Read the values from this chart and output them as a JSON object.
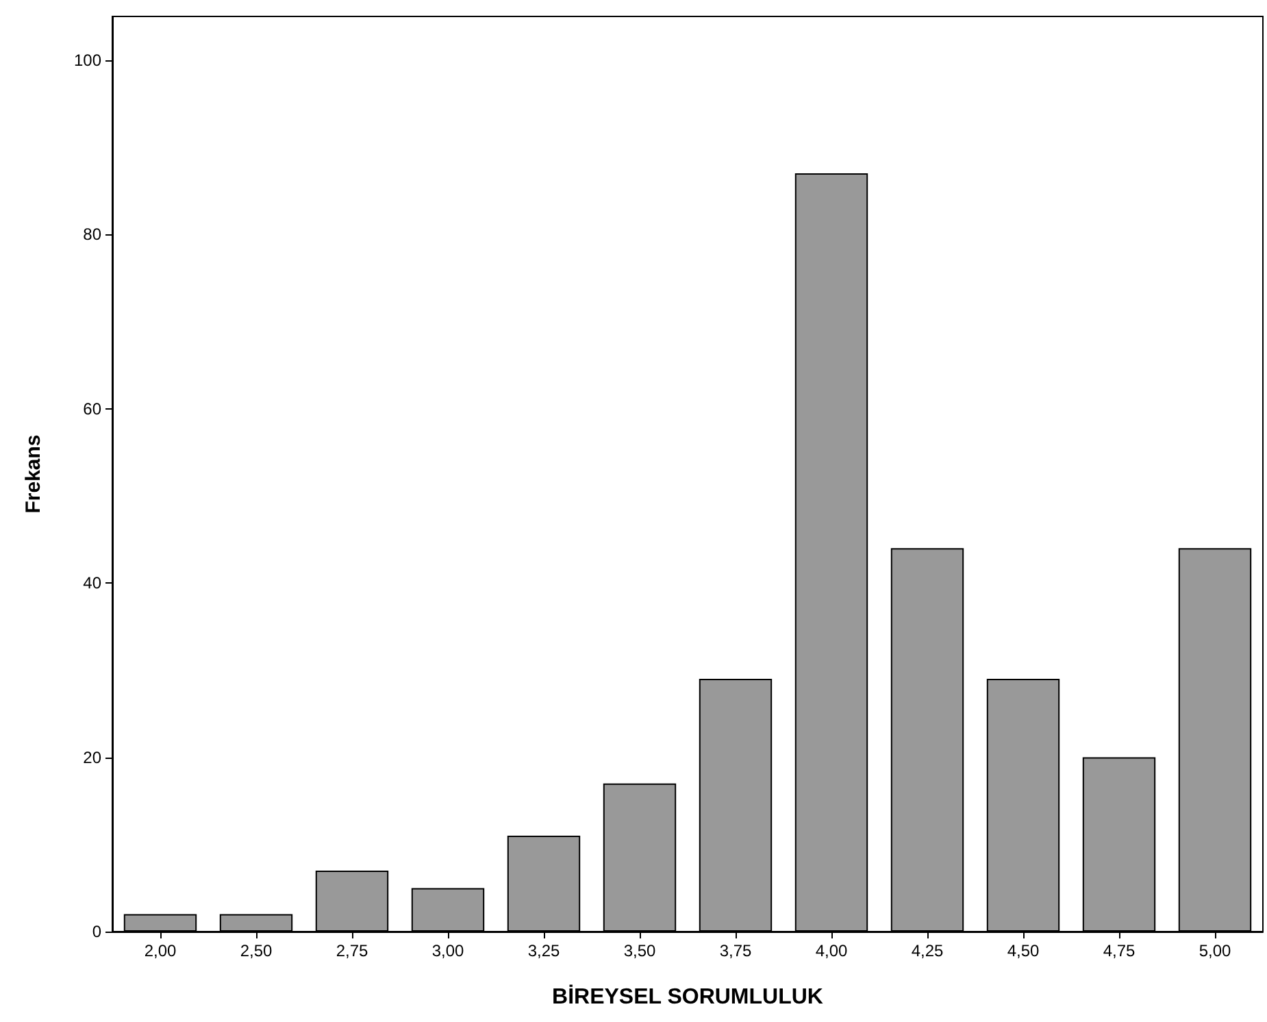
{
  "chart_data": {
    "type": "bar",
    "xlabel": "BİREYSEL SORUMLULUK",
    "ylabel": "Frekans",
    "categories": [
      "2,00",
      "2,50",
      "2,75",
      "3,00",
      "3,25",
      "3,50",
      "3,75",
      "4,00",
      "4,25",
      "4,50",
      "4,75",
      "5,00"
    ],
    "values": [
      2,
      2,
      7,
      5,
      11,
      17,
      29,
      87,
      44,
      29,
      20,
      44
    ],
    "color": "#999999",
    "ylim": [
      0,
      105
    ],
    "yticks": [
      0,
      20,
      40,
      60,
      80,
      100
    ],
    "grid": false
  }
}
